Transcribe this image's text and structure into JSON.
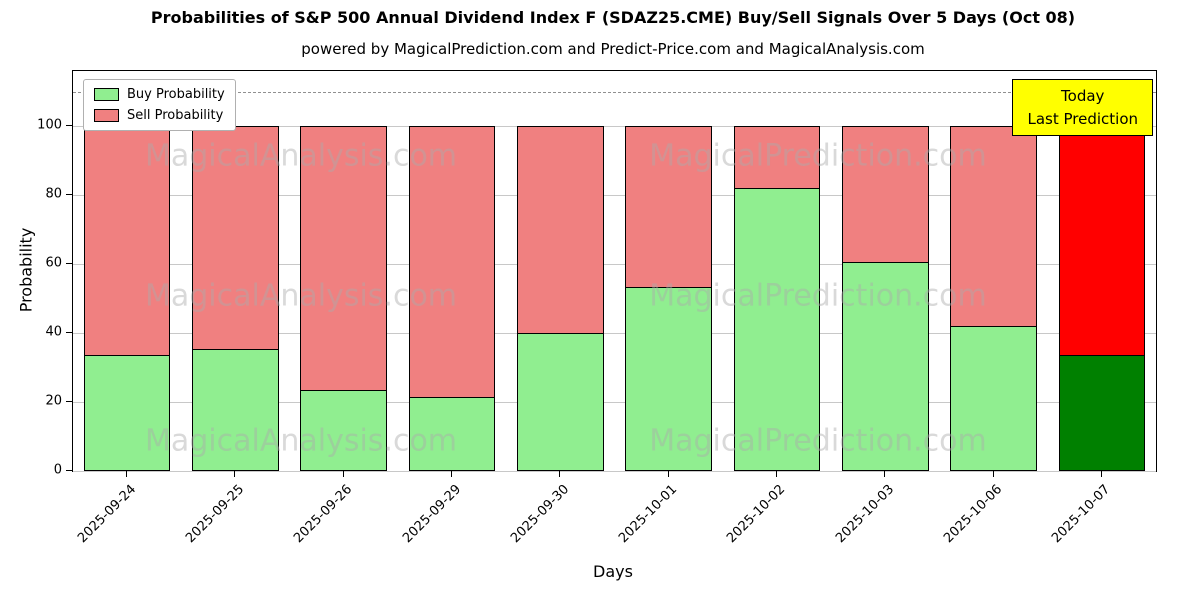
{
  "title": "Probabilities of S&P 500 Annual Dividend Index F (SDAZ25.CME) Buy/Sell Signals Over 5 Days (Oct 08)",
  "subtitle": "powered by MagicalPrediction.com and Predict-Price.com and MagicalAnalysis.com",
  "legend": {
    "buy": "Buy Probability",
    "sell": "Sell Probability"
  },
  "annotation": {
    "line1": "Today",
    "line2": "Last Prediction"
  },
  "watermarks": [
    "MagicalAnalysis.com",
    "MagicalPrediction.com"
  ],
  "colors": {
    "buy": "#90EE90",
    "sell": "#F08080",
    "last_buy": "#008000",
    "last_sell": "#FF0000",
    "annotation_bg": "#FFFF00",
    "grid": "#c8c8c8",
    "dashed_line": "#909090"
  },
  "chart_data": {
    "type": "bar",
    "stacked": true,
    "title": "Probabilities of S&P 500 Annual Dividend Index F (SDAZ25.CME) Buy/Sell Signals Over 5 Days (Oct 08)",
    "xlabel": "Days",
    "ylabel": "Probability",
    "categories": [
      "2025-09-24",
      "2025-09-25",
      "2025-09-26",
      "2025-09-29",
      "2025-09-30",
      "2025-10-01",
      "2025-10-02",
      "2025-10-03",
      "2025-10-06",
      "2025-10-07"
    ],
    "series": [
      {
        "name": "Buy Probability",
        "values": [
          33.5,
          35.5,
          23.5,
          21.5,
          40,
          53.5,
          82,
          60.5,
          42,
          33.5
        ]
      },
      {
        "name": "Sell Probability",
        "values": [
          66.5,
          64.5,
          76.5,
          78.5,
          60,
          46.5,
          18,
          39.5,
          58,
          66.5
        ]
      }
    ],
    "ylim": [
      0,
      116
    ],
    "yticks": [
      0,
      20,
      40,
      60,
      80,
      100
    ],
    "dashed_line_y": 110,
    "highlight_last_bar": true,
    "legend_position": "upper left",
    "grid": true
  }
}
